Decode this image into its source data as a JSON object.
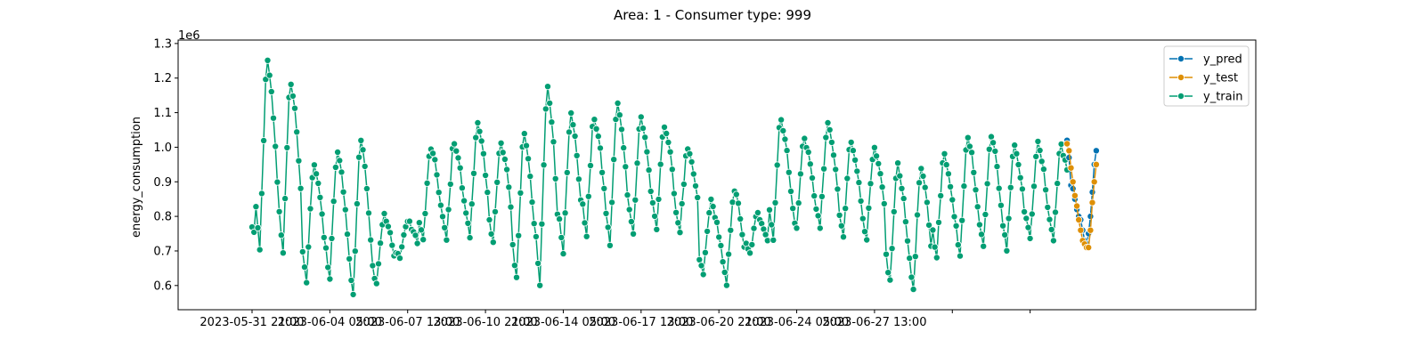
{
  "chart_data": {
    "type": "line",
    "title": "Area: 1 - Consumer type: 999",
    "xlabel": "",
    "ylabel": "energy_consumption",
    "y_multiplier_label": "1e6",
    "ylim": [
      0.53,
      1.31
    ],
    "yticks": [
      0.6,
      0.7,
      0.8,
      0.9,
      1.0,
      1.1,
      1.2,
      1.3
    ],
    "ytick_labels": [
      "0.6",
      "0.7",
      "0.8",
      "0.9",
      "1.0",
      "1.1",
      "1.2",
      "1.3"
    ],
    "xlim_hours": [
      -76,
      1032
    ],
    "xtick_hours": [
      0,
      80,
      160,
      240,
      320,
      400,
      480,
      560,
      640,
      720,
      800
    ],
    "xtick_labels": [
      "2023-05-31 21:00",
      "2023-06-04 05:00",
      "2023-06-07 13:00",
      "2023-06-10 21:00",
      "2023-06-14 05:00",
      "2023-06-17 13:00",
      "2023-06-20 21:00",
      "2023-06-24 05:00",
      "2023-06-27 13:00",
      "",
      ""
    ],
    "x_time_origin": "2023-05-31 21:00",
    "grid": false,
    "legend_position": "upper-right",
    "daily_points": [
      {
        "min": 0.74,
        "max": 0.79
      },
      {
        "min": 0.7,
        "max": 1.27
      },
      {
        "min": 0.7,
        "max": 1.21
      },
      {
        "min": 0.61,
        "max": 0.97
      },
      {
        "min": 0.62,
        "max": 1.0
      },
      {
        "min": 0.57,
        "max": 1.04
      },
      {
        "min": 0.61,
        "max": 0.81
      },
      {
        "min": 0.68,
        "max": 0.79
      },
      {
        "min": 0.73,
        "max": 1.01
      },
      {
        "min": 0.73,
        "max": 1.03
      },
      {
        "min": 0.74,
        "max": 1.08
      },
      {
        "min": 0.73,
        "max": 1.02
      },
      {
        "min": 0.62,
        "max": 1.06
      },
      {
        "min": 0.6,
        "max": 1.2
      },
      {
        "min": 0.7,
        "max": 1.11
      },
      {
        "min": 0.75,
        "max": 1.1
      },
      {
        "min": 0.72,
        "max": 1.14
      },
      {
        "min": 0.75,
        "max": 1.1
      },
      {
        "min": 0.76,
        "max": 1.08
      },
      {
        "min": 0.76,
        "max": 1.0
      },
      {
        "min": 0.63,
        "max": 0.85
      },
      {
        "min": 0.6,
        "max": 0.89
      },
      {
        "min": 0.69,
        "max": 0.81
      },
      {
        "min": 0.74,
        "max": 1.1
      },
      {
        "min": 0.76,
        "max": 1.04
      },
      {
        "min": 0.76,
        "max": 1.08
      },
      {
        "min": 0.74,
        "max": 1.03
      },
      {
        "min": 0.74,
        "max": 1.0
      },
      {
        "min": 0.61,
        "max": 0.96
      },
      {
        "min": 0.59,
        "max": 0.95
      },
      {
        "min": 0.69,
        "max": 0.99
      },
      {
        "min": 0.69,
        "max": 1.05
      },
      {
        "min": 0.71,
        "max": 1.05
      },
      {
        "min": 0.71,
        "max": 1.02
      },
      {
        "min": 0.73,
        "max": 1.02
      }
    ],
    "series": [
      {
        "name": "y_pred",
        "color": "#0072b2",
        "hours": [
          838,
          840,
          842,
          844,
          846,
          848,
          850,
          852,
          854,
          856,
          858,
          860,
          862,
          864,
          866,
          868
        ],
        "values": [
          1.02,
          0.97,
          0.89,
          0.88,
          0.85,
          0.82,
          0.8,
          0.79,
          0.76,
          0.73,
          0.72,
          0.75,
          0.8,
          0.87,
          0.95,
          0.99
        ]
      },
      {
        "name": "y_test",
        "color": "#de8f05",
        "hours": [
          838,
          840,
          842,
          844,
          846,
          848,
          850,
          852,
          854,
          856,
          858,
          860,
          862,
          864,
          866,
          868
        ],
        "values": [
          1.01,
          0.99,
          0.94,
          0.9,
          0.86,
          0.83,
          0.79,
          0.76,
          0.73,
          0.72,
          0.71,
          0.71,
          0.76,
          0.84,
          0.9,
          0.95
        ]
      },
      {
        "name": "y_train",
        "color": "#029e73"
      }
    ]
  }
}
